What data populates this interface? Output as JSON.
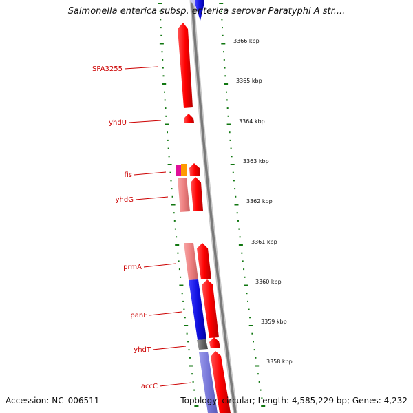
{
  "title": "Salmonella enterica subsp. enterica serovar Paratyphi A str....",
  "footer": {
    "accession": "Accession: NC_006511",
    "summary": "Topology: circular; Length: 4,585,229 bp; Genes: 4,232"
  },
  "colors": {
    "gene_label": "#cc0000",
    "forward_cds": "#ff0000",
    "reverse_cds": "#ee8080",
    "blue_cds": "#1010e0",
    "lavender_cds": "#7777d8",
    "backbone": "#888888",
    "tick_marks": "#117711"
  },
  "kbp_ticks": [
    {
      "label": "3366 kbp"
    },
    {
      "label": "3365 kbp"
    },
    {
      "label": "3364 kbp"
    },
    {
      "label": "3363 kbp"
    },
    {
      "label": "3362 kbp"
    },
    {
      "label": "3361 kbp"
    },
    {
      "label": "3360 kbp"
    },
    {
      "label": "3359 kbp"
    },
    {
      "label": "3358 kbp"
    }
  ],
  "gene_labels": [
    {
      "text": "SPA3255"
    },
    {
      "text": "yhdU"
    },
    {
      "text": "fis"
    },
    {
      "text": "yhdG"
    },
    {
      "text": "prmA"
    },
    {
      "text": "panF"
    },
    {
      "text": "yhdT"
    },
    {
      "text": "accC"
    }
  ]
}
